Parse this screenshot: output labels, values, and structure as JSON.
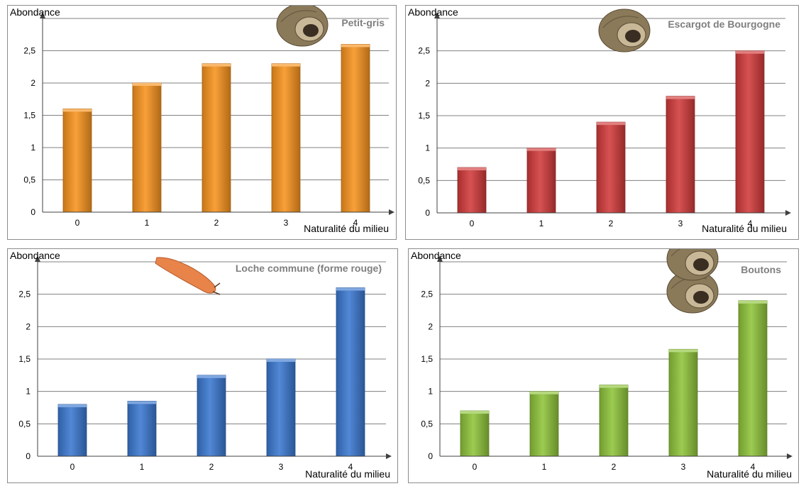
{
  "colors": {
    "orange": "#f7931e",
    "red": "#d23a3a",
    "blue": "#3a78d0",
    "green": "#8fc43a",
    "grid": "#808080",
    "title": "#7f7f7f"
  },
  "chart_data": [
    {
      "type": "bar",
      "title": "Petit-gris",
      "ylabel": "Abondance",
      "xlabel": "Naturalité du milieu",
      "categories": [
        "0",
        "1",
        "2",
        "3",
        "4"
      ],
      "values": [
        1.6,
        2.0,
        2.3,
        2.3,
        2.6
      ],
      "ylim": [
        0,
        3
      ],
      "yticks": [
        "0",
        "0,5",
        "1",
        "1,5",
        "2",
        "2,5"
      ],
      "grid": true,
      "color": "orange",
      "icon": "snail-shell-icon"
    },
    {
      "type": "bar",
      "title": "Escargot de Bourgogne",
      "ylabel": "Abondance",
      "xlabel": "Naturalité du milieu",
      "categories": [
        "0",
        "1",
        "2",
        "3",
        "4"
      ],
      "values": [
        0.7,
        1.0,
        1.4,
        1.8,
        2.5
      ],
      "ylim": [
        0,
        3
      ],
      "yticks": [
        "0",
        "0,5",
        "1",
        "1,5",
        "2",
        "2,5"
      ],
      "grid": true,
      "color": "red",
      "icon": "snail-shell-icon"
    },
    {
      "type": "bar",
      "title": "Loche commune (forme rouge)",
      "ylabel": "Abondance",
      "xlabel": "Naturalité du milieu",
      "categories": [
        "0",
        "1",
        "2",
        "3",
        "4"
      ],
      "values": [
        0.8,
        0.85,
        1.25,
        1.5,
        2.6
      ],
      "ylim": [
        0,
        3
      ],
      "yticks": [
        "0",
        "0,5",
        "1",
        "1,5",
        "2",
        "2,5"
      ],
      "grid": true,
      "color": "blue",
      "icon": "slug-icon"
    },
    {
      "type": "bar",
      "title": "Boutons",
      "ylabel": "Abondance",
      "xlabel": "Naturalité du milieu",
      "categories": [
        "0",
        "1",
        "2",
        "3",
        "4"
      ],
      "values": [
        0.7,
        1.0,
        1.1,
        1.65,
        2.4
      ],
      "ylim": [
        0,
        3
      ],
      "yticks": [
        "0",
        "0,5",
        "1",
        "1,5",
        "2",
        "2,5"
      ],
      "grid": true,
      "color": "green",
      "icon": "snail-shell-icon"
    }
  ]
}
